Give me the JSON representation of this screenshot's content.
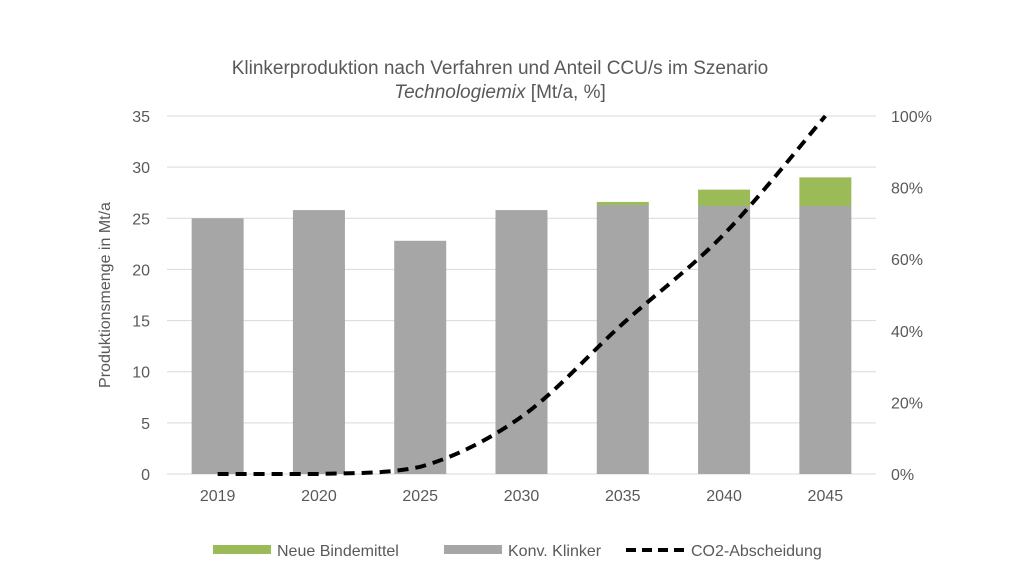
{
  "colors": {
    "new_binders": "#9bbb59",
    "conventional_clinker": "#a6a6a6",
    "co2_capture": "#000000",
    "grid": "#d9d9d9",
    "text": "#595959"
  },
  "chart_data": {
    "type": "bar",
    "stacked": true,
    "title_line1": "Klinkerproduktion  nach Verfahren und Anteil CCU/s im Szenario",
    "title_line2_italic": "Technologiemix",
    "title_line2_rest": " [Mt/a, %]",
    "ylabel": "Produktionsmenge  in Mt/a",
    "ylim": [
      0,
      35
    ],
    "y2lim": [
      0,
      1
    ],
    "y_ticks": [
      "0",
      "5",
      "10",
      "15",
      "20",
      "25",
      "30",
      "35"
    ],
    "y2_ticks": [
      "0%",
      "20%",
      "40%",
      "60%",
      "80%",
      "100%"
    ],
    "categories": [
      "2019",
      "2020",
      "2025",
      "2030",
      "2035",
      "2040",
      "2045"
    ],
    "grid": true,
    "legend_position": "bottom",
    "series": [
      {
        "name": "Neue Bindemittel",
        "kind": "bar",
        "values": [
          0,
          0,
          0,
          0,
          0.3,
          1.6,
          2.8
        ]
      },
      {
        "name": "Konv. Klinker",
        "kind": "bar",
        "values": [
          25.0,
          25.8,
          22.8,
          25.8,
          26.3,
          26.2,
          26.2
        ]
      },
      {
        "name": "CO2-Abscheidung",
        "kind": "line",
        "axis": "right",
        "style": "dashed",
        "values": [
          0.0,
          0.0,
          0.02,
          0.16,
          0.42,
          0.67,
          1.0
        ]
      }
    ]
  }
}
